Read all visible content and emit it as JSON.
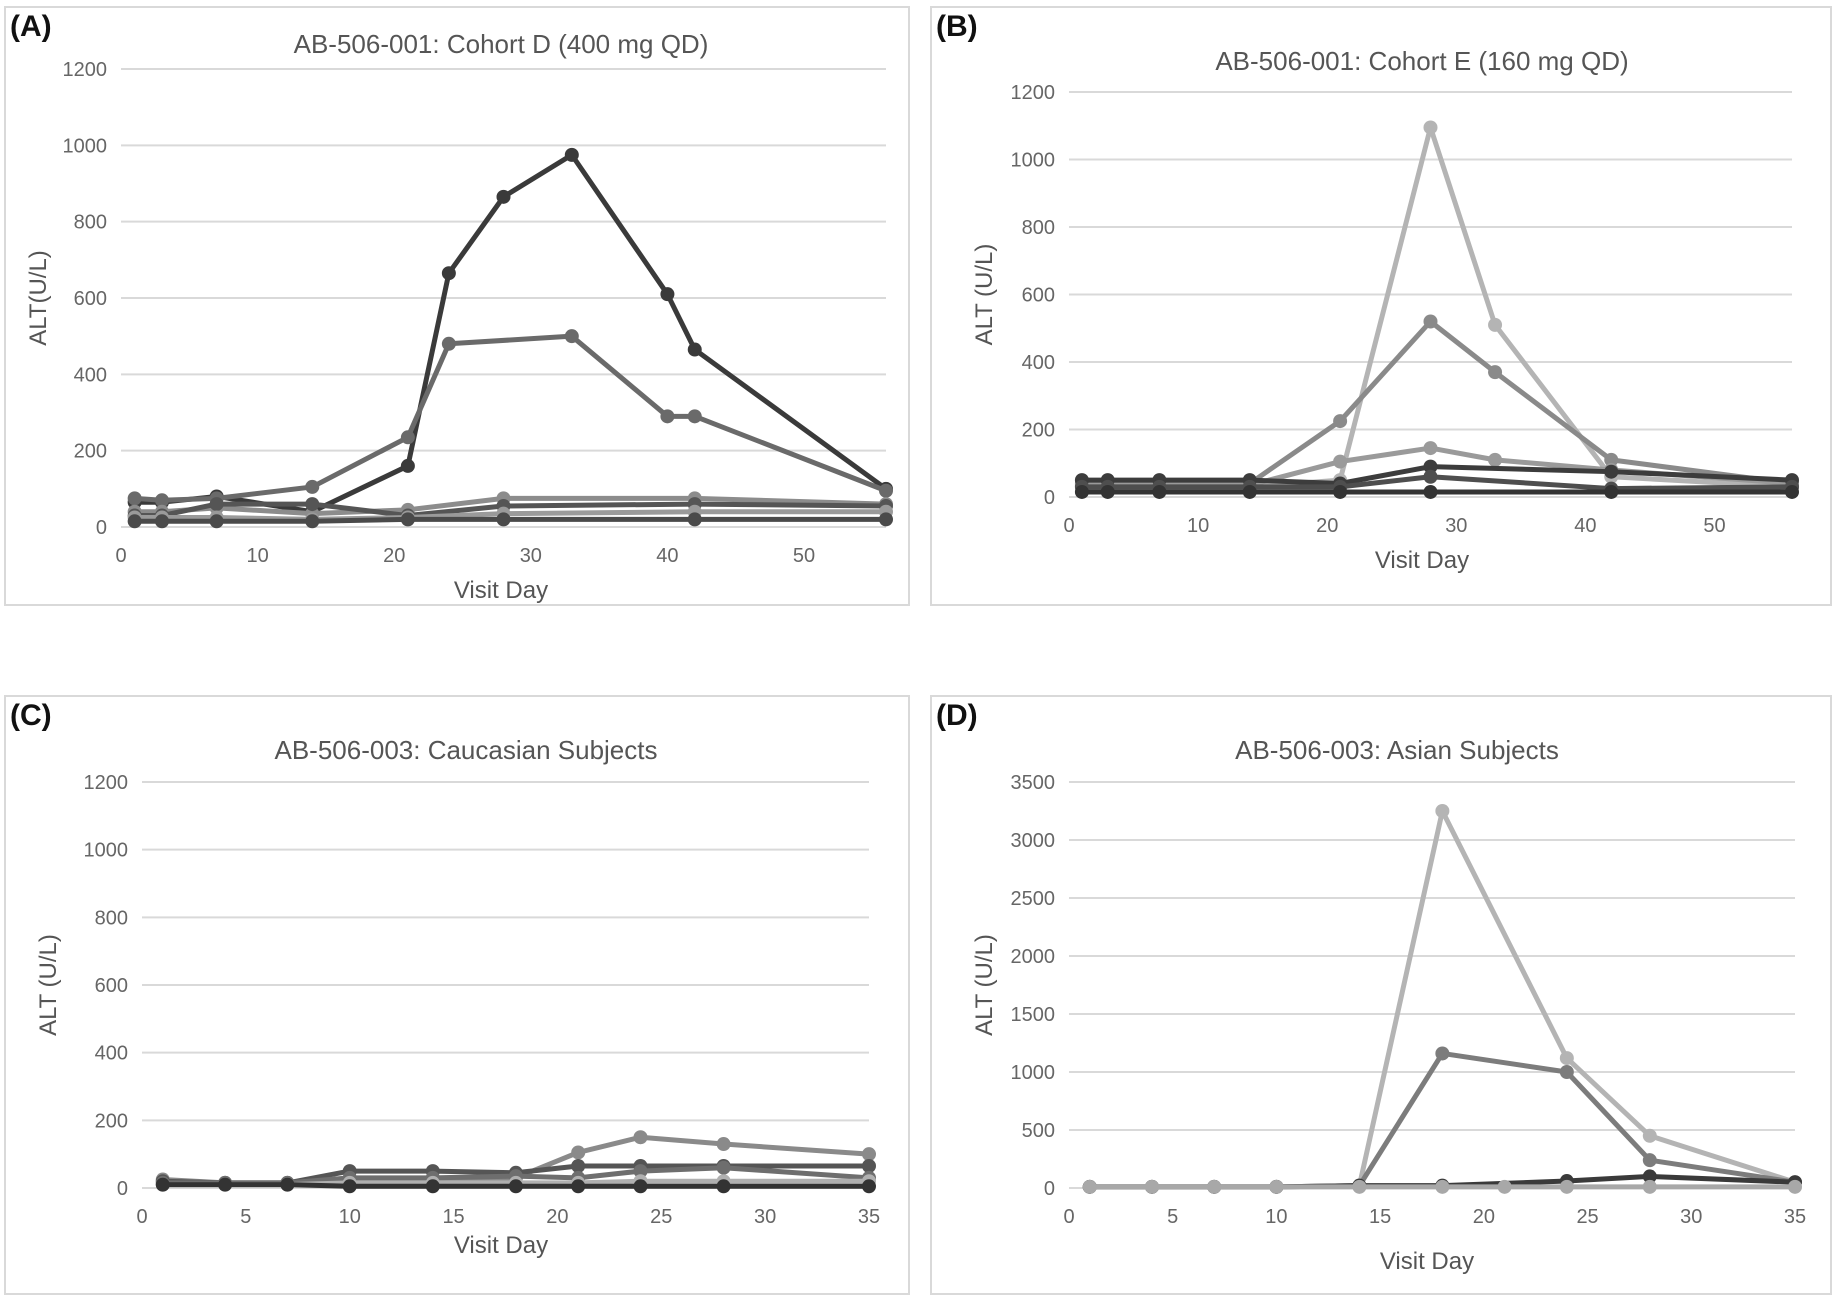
{
  "chart_data": [
    {
      "panel_label": "(A)",
      "type": "line",
      "title": "AB-506-001: Cohort D (400 mg  QD)",
      "xlabel": "Visit Day",
      "ylabel": "ALT(U/L)",
      "xlim": [
        0,
        56
      ],
      "ylim": [
        0,
        1200
      ],
      "xticks": [
        0,
        10,
        20,
        30,
        40,
        50
      ],
      "yticks": [
        0,
        200,
        400,
        600,
        800,
        1000,
        1200
      ],
      "grid": true,
      "x": [
        1,
        3,
        7,
        14,
        21,
        24,
        28,
        33,
        40,
        42,
        56
      ],
      "series": [
        {
          "color": "#3a3a3a",
          "values": [
            65,
            65,
            80,
            40,
            160,
            665,
            865,
            975,
            610,
            465,
            100
          ]
        },
        {
          "color": "#6a6a6a",
          "values": [
            75,
            70,
            75,
            105,
            235,
            480,
            null,
            500,
            290,
            290,
            95
          ]
        },
        {
          "color": "#8c8c8c",
          "values": [
            40,
            40,
            50,
            35,
            45,
            null,
            75,
            null,
            null,
            75,
            60
          ]
        },
        {
          "color": "#555555",
          "values": [
            30,
            30,
            60,
            60,
            30,
            null,
            55,
            null,
            null,
            60,
            55
          ]
        },
        {
          "color": "#9a9a9a",
          "values": [
            25,
            25,
            25,
            20,
            25,
            null,
            35,
            null,
            null,
            40,
            40
          ]
        },
        {
          "color": "#4a4a4a",
          "values": [
            15,
            15,
            15,
            15,
            20,
            null,
            20,
            null,
            null,
            20,
            20
          ]
        }
      ]
    },
    {
      "panel_label": "(B)",
      "type": "line",
      "title": "AB-506-001: Cohort E (160 mg QD)",
      "xlabel": "Visit Day",
      "ylabel": "ALT (U/L)",
      "xlim": [
        0,
        56
      ],
      "ylim": [
        0,
        1200
      ],
      "xticks": [
        0,
        10,
        20,
        30,
        40,
        50
      ],
      "yticks": [
        0,
        200,
        400,
        600,
        800,
        1000,
        1200
      ],
      "grid": true,
      "x": [
        1,
        3,
        7,
        14,
        21,
        28,
        33,
        42,
        56
      ],
      "series": [
        {
          "color": "#b4b4b4",
          "values": [
            30,
            30,
            30,
            30,
            50,
            1095,
            510,
            60,
            30
          ]
        },
        {
          "color": "#8a8a8a",
          "values": [
            40,
            40,
            40,
            40,
            225,
            520,
            370,
            110,
            40
          ]
        },
        {
          "color": "#9a9a9a",
          "values": [
            35,
            35,
            35,
            35,
            105,
            145,
            110,
            80,
            40
          ]
        },
        {
          "color": "#3c3c3c",
          "values": [
            50,
            50,
            50,
            50,
            40,
            90,
            null,
            75,
            50
          ]
        },
        {
          "color": "#4e4e4e",
          "values": [
            30,
            30,
            30,
            30,
            30,
            60,
            null,
            25,
            30
          ]
        },
        {
          "color": "#333333",
          "values": [
            15,
            15,
            15,
            15,
            15,
            15,
            null,
            15,
            15
          ]
        }
      ]
    },
    {
      "panel_label": "(C)",
      "type": "line",
      "title": "AB-506-003: Caucasian Subjects",
      "xlabel": "Visit Day",
      "ylabel": "ALT (U/L)",
      "xlim": [
        0,
        35
      ],
      "ylim": [
        0,
        1200
      ],
      "xticks": [
        0,
        5,
        10,
        15,
        20,
        25,
        30,
        35
      ],
      "yticks": [
        0,
        200,
        400,
        600,
        800,
        1000,
        1200
      ],
      "grid": true,
      "x": [
        1,
        4,
        7,
        10,
        14,
        18,
        21,
        24,
        28,
        35
      ],
      "series": [
        {
          "color": "#8a8a8a",
          "values": [
            25,
            15,
            15,
            20,
            25,
            30,
            105,
            150,
            130,
            100
          ]
        },
        {
          "color": "#555555",
          "values": [
            20,
            15,
            15,
            50,
            50,
            45,
            65,
            65,
            65,
            65
          ]
        },
        {
          "color": "#6e6e6e",
          "values": [
            15,
            15,
            15,
            30,
            30,
            35,
            30,
            50,
            60,
            30
          ]
        },
        {
          "color": "#b0b0b0",
          "values": [
            10,
            10,
            10,
            15,
            15,
            15,
            15,
            20,
            20,
            20
          ]
        },
        {
          "color": "#333333",
          "values": [
            10,
            10,
            10,
            5,
            5,
            5,
            5,
            5,
            5,
            5
          ]
        }
      ]
    },
    {
      "panel_label": "(D)",
      "type": "line",
      "title": "AB-506-003: Asian Subjects",
      "xlabel": "Visit Day",
      "ylabel": "ALT (U/L)",
      "xlim": [
        0,
        35
      ],
      "ylim": [
        0,
        3500
      ],
      "xticks": [
        0,
        5,
        10,
        15,
        20,
        25,
        30,
        35
      ],
      "yticks": [
        0,
        500,
        1000,
        1500,
        2000,
        2500,
        3000,
        3500
      ],
      "grid": true,
      "x": [
        1,
        4,
        7,
        10,
        14,
        18,
        21,
        24,
        28,
        35
      ],
      "series": [
        {
          "color": "#b4b4b4",
          "values": [
            10,
            10,
            10,
            10,
            20,
            3250,
            null,
            1120,
            450,
            50
          ]
        },
        {
          "color": "#7c7c7c",
          "values": [
            10,
            10,
            10,
            10,
            20,
            1160,
            null,
            1000,
            240,
            50
          ]
        },
        {
          "color": "#3a3a3a",
          "values": [
            10,
            10,
            10,
            10,
            20,
            20,
            null,
            60,
            100,
            50
          ]
        },
        {
          "color": "#a8a8a8",
          "values": [
            10,
            10,
            10,
            10,
            10,
            10,
            10,
            10,
            10,
            10
          ]
        }
      ]
    }
  ]
}
